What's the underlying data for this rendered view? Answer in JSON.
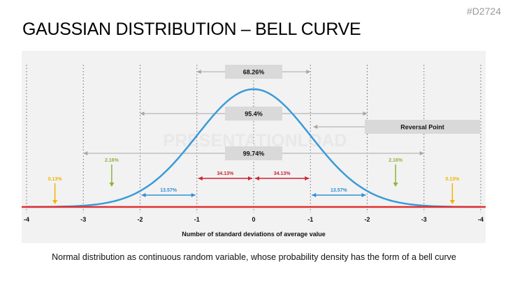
{
  "slide": {
    "id_label": "#D2724",
    "title": "GAUSSIAN DISTRIBUTION – BELL CURVE",
    "caption": "Normal distribution as continuous random variable, whose probability density has the form of a bell curve"
  },
  "watermark": "PRESENTATIONLOAD",
  "colors": {
    "curve": "#3a9ad9",
    "baseline": "#e03030",
    "inner": "#cc2233",
    "second": "#2f8fd6",
    "third": "#8db33a",
    "tail": "#f0b400",
    "bracket": "#a6a6a6",
    "label_box": "#d9d9d9",
    "panel": "#f2f2f2"
  },
  "chart_data": {
    "type": "line",
    "title": "",
    "xlabel": "Number of standard deviations of average value",
    "ylabel": "",
    "x_ticks": [
      "-4",
      "-3",
      "-2",
      "-1",
      "0",
      "-1",
      "-2",
      "-3",
      "-4"
    ],
    "xlim": [
      -4,
      4
    ],
    "grid": "dotted vertical lines at each standard deviation",
    "series": [
      {
        "function": "gaussian",
        "mean": 0,
        "sd": 1
      }
    ],
    "brackets": [
      {
        "label": "68.26%",
        "from": -1,
        "to": 1
      },
      {
        "label": "95.4%",
        "from": -2,
        "to": 2
      },
      {
        "label": "99.74%",
        "from": -3,
        "to": 3
      }
    ],
    "reversal_point": {
      "label": "Reversal Point",
      "x": 1
    },
    "interval_labels": [
      {
        "label": "34.13%",
        "from": -1,
        "to": 0,
        "color_key": "inner"
      },
      {
        "label": "34.13%",
        "from": 0,
        "to": 1,
        "color_key": "inner"
      },
      {
        "label": "13.57%",
        "from": -2,
        "to": -1,
        "color_key": "second"
      },
      {
        "label": "13.57%",
        "from": 1,
        "to": 2,
        "color_key": "second"
      }
    ],
    "tail_labels": [
      {
        "label": "2.16%",
        "x": -2.5,
        "color_key": "third"
      },
      {
        "label": "2.16%",
        "x": 2.5,
        "color_key": "third"
      },
      {
        "label": "0.13%",
        "x": -3.5,
        "color_key": "tail"
      },
      {
        "label": "0.13%",
        "x": 3.5,
        "color_key": "tail"
      }
    ]
  }
}
